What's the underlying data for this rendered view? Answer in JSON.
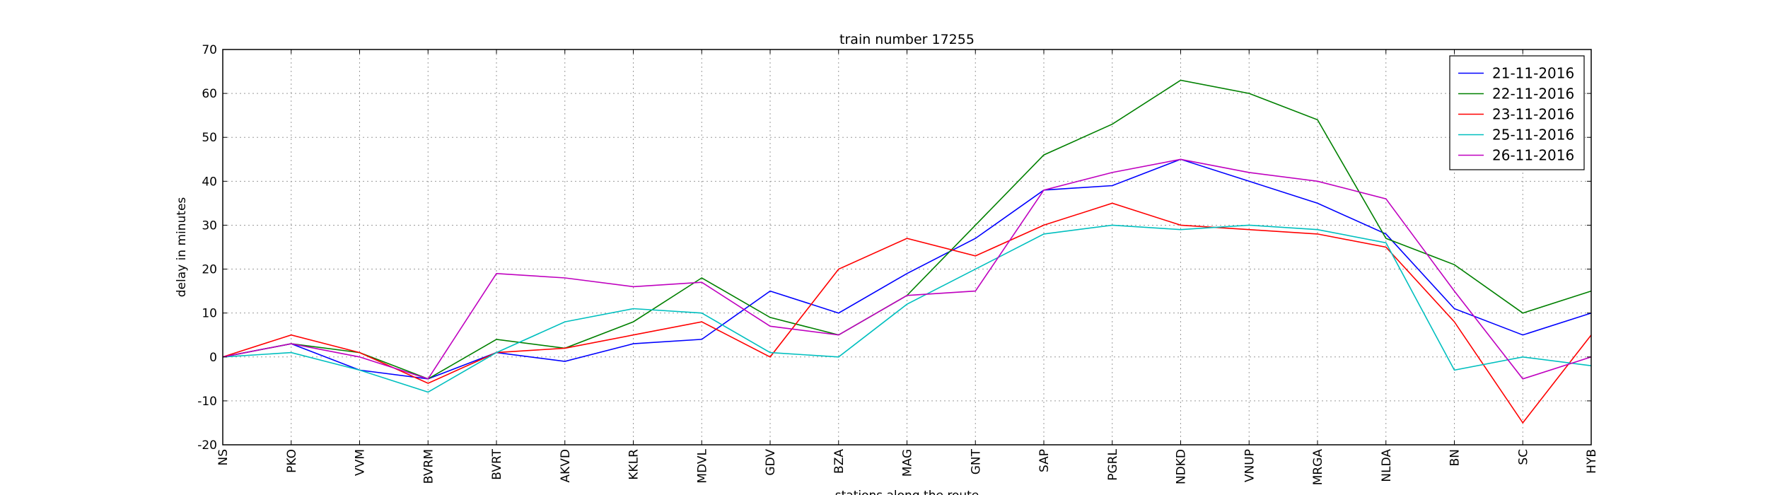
{
  "chart_data": {
    "type": "line",
    "title": "train number 17255",
    "xlabel": "stations along the route",
    "ylabel": "delay in minutes",
    "ylim": [
      -20,
      70
    ],
    "yticks": [
      -20,
      -10,
      0,
      10,
      20,
      30,
      40,
      50,
      60,
      70
    ],
    "grid": true,
    "legend_position": "top-right",
    "categories": [
      "NS",
      "PKO",
      "VVM",
      "BVRM",
      "BVRT",
      "AKVD",
      "KKLR",
      "MDVL",
      "GDV",
      "BZA",
      "MAG",
      "GNT",
      "SAP",
      "PGRL",
      "NDKD",
      "VNUP",
      "MRGA",
      "NLDA",
      "BN",
      "SC",
      "HYB"
    ],
    "series": [
      {
        "name": "21-11-2016",
        "color": "#0000ff",
        "values": [
          0,
          3,
          -3,
          -5,
          1,
          -1,
          3,
          4,
          15,
          10,
          19,
          27,
          38,
          39,
          45,
          40,
          35,
          28,
          11,
          5,
          10
        ]
      },
      {
        "name": "22-11-2016",
        "color": "#008000",
        "values": [
          0,
          3,
          1,
          -5,
          4,
          2,
          8,
          18,
          9,
          5,
          14,
          30,
          46,
          53,
          63,
          60,
          54,
          27,
          21,
          10,
          15
        ]
      },
      {
        "name": "23-11-2016",
        "color": "#ff0000",
        "values": [
          0,
          5,
          1,
          -6,
          1,
          2,
          5,
          8,
          0,
          20,
          27,
          23,
          30,
          35,
          30,
          29,
          28,
          25,
          8,
          -15,
          5
        ]
      },
      {
        "name": "25-11-2016",
        "color": "#00bfbf",
        "values": [
          0,
          1,
          -3,
          -8,
          1,
          8,
          11,
          10,
          1,
          0,
          12,
          20,
          28,
          30,
          29,
          30,
          29,
          26,
          -3,
          0,
          -2
        ]
      },
      {
        "name": "26-11-2016",
        "color": "#bf00bf",
        "values": [
          0,
          3,
          0,
          -5,
          19,
          18,
          16,
          17,
          7,
          5,
          14,
          15,
          38,
          42,
          45,
          42,
          40,
          36,
          15,
          -5,
          0
        ]
      }
    ]
  }
}
